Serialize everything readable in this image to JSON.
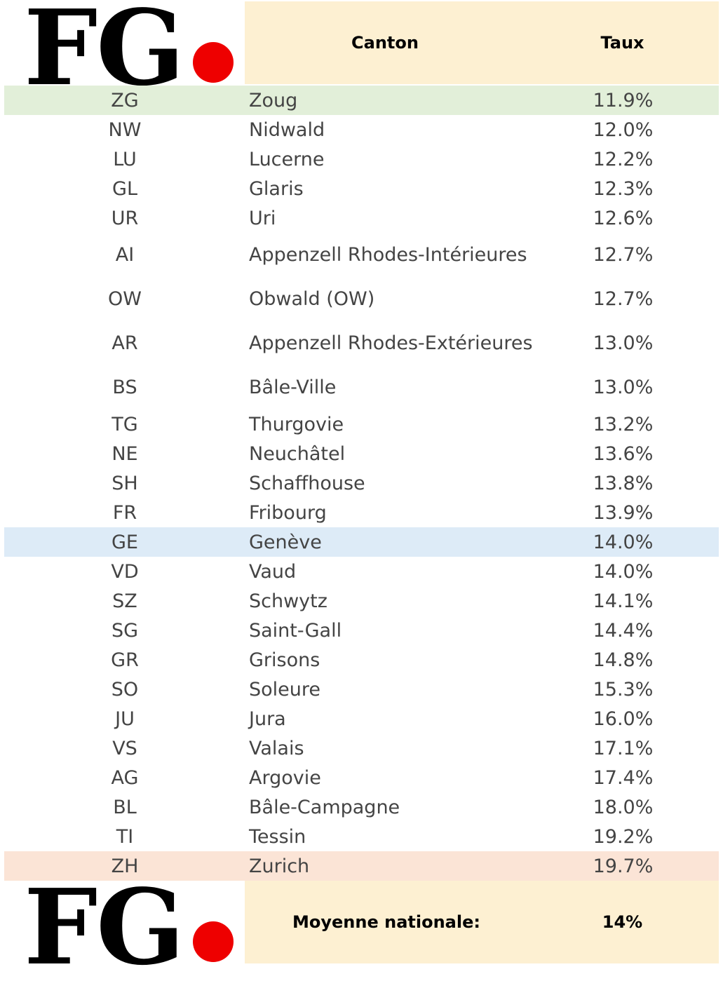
{
  "brand": {
    "logo_text": "FG",
    "dot_color": "#ee0000"
  },
  "header": {
    "canton_label": "Canton",
    "rate_label": "Taux"
  },
  "rows": [
    {
      "code": "ZG",
      "name": "Zoug",
      "rate": "11.9%",
      "highlight": "green"
    },
    {
      "code": "NW",
      "name": "Nidwald",
      "rate": "12.0%"
    },
    {
      "code": "LU",
      "name": "Lucerne",
      "rate": "12.2%"
    },
    {
      "code": "GL",
      "name": "Glaris",
      "rate": "12.3%"
    },
    {
      "code": "UR",
      "name": "Uri",
      "rate": "12.6%"
    },
    {
      "code": "AI",
      "name": "Appenzell Rhodes-Intérieures",
      "rate": "12.7%"
    },
    {
      "code": "OW",
      "name": "Obwald (OW)",
      "rate": "12.7%"
    },
    {
      "code": "AR",
      "name": "Appenzell Rhodes-Extérieures",
      "rate": "13.0%"
    },
    {
      "code": "BS",
      "name": "Bâle-Ville",
      "rate": "13.0%"
    },
    {
      "code": "TG",
      "name": "Thurgovie",
      "rate": "13.2%"
    },
    {
      "code": "NE",
      "name": "Neuchâtel",
      "rate": "13.6%"
    },
    {
      "code": "SH",
      "name": "Schaffhouse",
      "rate": "13.8%"
    },
    {
      "code": "FR",
      "name": "Fribourg",
      "rate": "13.9%"
    },
    {
      "code": "GE",
      "name": "Genève",
      "rate": "14.0%",
      "highlight": "blue"
    },
    {
      "code": "VD",
      "name": "Vaud",
      "rate": "14.0%"
    },
    {
      "code": "SZ",
      "name": "Schwytz",
      "rate": "14.1%"
    },
    {
      "code": "SG",
      "name": "Saint-Gall",
      "rate": "14.4%"
    },
    {
      "code": "GR",
      "name": "Grisons",
      "rate": "14.8%"
    },
    {
      "code": "SO",
      "name": "Soleure",
      "rate": "15.3%"
    },
    {
      "code": "JU",
      "name": "Jura",
      "rate": "16.0%"
    },
    {
      "code": "VS",
      "name": "Valais",
      "rate": "17.1%"
    },
    {
      "code": "AG",
      "name": "Argovie",
      "rate": "17.4%"
    },
    {
      "code": "BL",
      "name": "Bâle-Campagne",
      "rate": "18.0%"
    },
    {
      "code": "TI",
      "name": "Tessin",
      "rate": "19.2%"
    },
    {
      "code": "ZH",
      "name": "Zurich",
      "rate": "19.7%",
      "highlight": "red"
    }
  ],
  "footer": {
    "label": "Moyenne nationale:",
    "value": "14%"
  },
  "colors": {
    "header_bg": "#fdf0d2",
    "green": "#e2efd9",
    "blue": "#ddebf7",
    "red": "#fbe4d6"
  }
}
